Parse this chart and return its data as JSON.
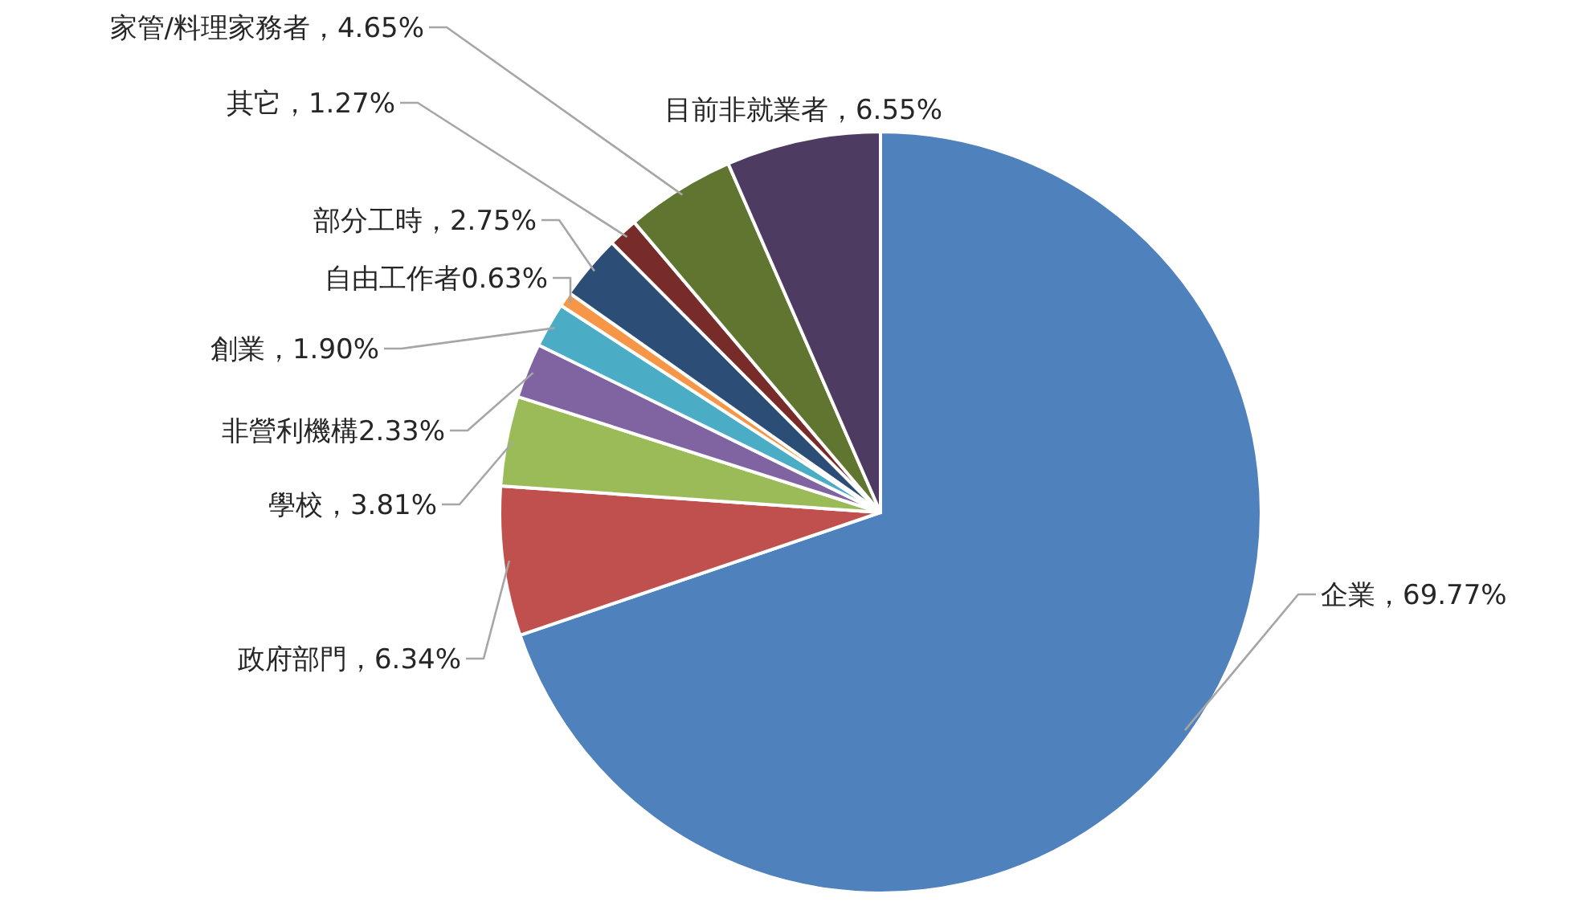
{
  "chart_data": {
    "type": "pie",
    "categories": [
      "企業",
      "政府部門",
      "學校",
      "非營利機構",
      "創業",
      "自由工作者",
      "部分工時",
      "其它",
      "家管/料理家務者",
      "目前非就業者"
    ],
    "values": [
      69.77,
      6.34,
      3.81,
      2.33,
      1.9,
      0.63,
      2.75,
      1.27,
      4.65,
      6.55
    ],
    "value_labels": [
      "，69.77%",
      "，6.34%",
      "，3.81%",
      "2.33%",
      "，1.90%",
      "0.63%",
      "，2.75%",
      "，1.27%",
      "，4.65%",
      "，6.55%"
    ],
    "colors": [
      "#4f81bd",
      "#c0504d",
      "#9bbb59",
      "#8064a2",
      "#4bacc6",
      "#f79646",
      "#2c4d75",
      "#772c2a",
      "#5f7530",
      "#4d3b62"
    ]
  }
}
